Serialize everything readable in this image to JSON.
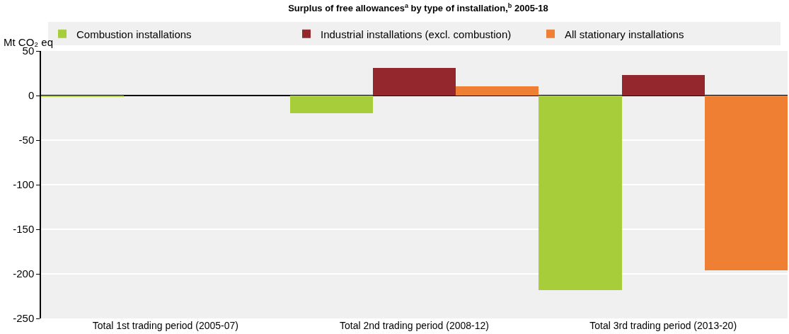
{
  "chart_data": {
    "type": "bar",
    "title": "Surplus of free allowances$^{a}$ by type of installation,$^{b}$ 2005-18",
    "ylabel": "Mt CO₂ eq",
    "categories": [
      "Total 1st trading period (2005-07)",
      "Total 2nd trading period (2008-12)",
      "Total 3rd trading period (2013-20)"
    ],
    "series": [
      {
        "name": "Combustion installations",
        "color": "#a7ce3a",
        "values": [
          -1,
          -20,
          -218
        ]
      },
      {
        "name": "Industrial installations (excl. combustion)",
        "color": "#94262e",
        "values": [
          0,
          31,
          23
        ]
      },
      {
        "name": "All stationary installations",
        "color": "#ee7f33",
        "values": [
          0,
          10,
          -196
        ]
      }
    ],
    "ylim": [
      -250,
      50
    ],
    "yticks": [
      -250,
      -200,
      -150,
      -100,
      -50,
      0,
      50
    ],
    "grid": "y",
    "legend": "top"
  }
}
